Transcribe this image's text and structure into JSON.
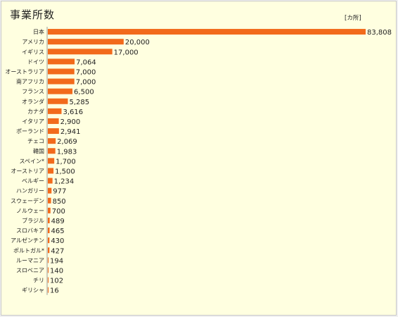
{
  "title": "事業所数",
  "unit": "[カ所]",
  "colors": {
    "bar": "#f26a1b",
    "background": "#ffffe0",
    "axis": "#999999"
  },
  "chart_data": {
    "type": "bar",
    "orientation": "horizontal",
    "title": "事業所数",
    "unit": "[カ所]",
    "categories": [
      "日本",
      "アメリカ",
      "イギリス",
      "ドイツ",
      "オーストラリア",
      "南アフリカ",
      "フランス",
      "オランダ",
      "カナダ",
      "イタリア",
      "ポーランド",
      "チェコ",
      "韓国",
      "スペイン*",
      "オーストリア",
      "ベルギー",
      "ハンガリー",
      "スウェーデン",
      "ノルウェー",
      "ブラジル",
      "スロバキア",
      "アルゼンチン",
      "ポルトガル*",
      "ルーマニア",
      "スロベニア",
      "チリ",
      "ギリシャ"
    ],
    "values": [
      83808,
      20000,
      17000,
      7064,
      7000,
      7000,
      6500,
      5285,
      3616,
      2900,
      2941,
      2069,
      1983,
      1700,
      1500,
      1234,
      977,
      850,
      700,
      489,
      465,
      430,
      427,
      194,
      140,
      102,
      16
    ],
    "value_labels": [
      "83,808",
      "20,000",
      "17,000",
      "7,064",
      "7,000",
      "7,000",
      "6,500",
      "5,285",
      "3,616",
      "2,900",
      "2,941",
      "2,069",
      "1,983",
      "1,700",
      "1,500",
      "1,234",
      "977",
      "850",
      "700",
      "489",
      "465",
      "430",
      "427",
      "194",
      "140",
      "102",
      "16"
    ],
    "grid": false,
    "legend": "none"
  }
}
